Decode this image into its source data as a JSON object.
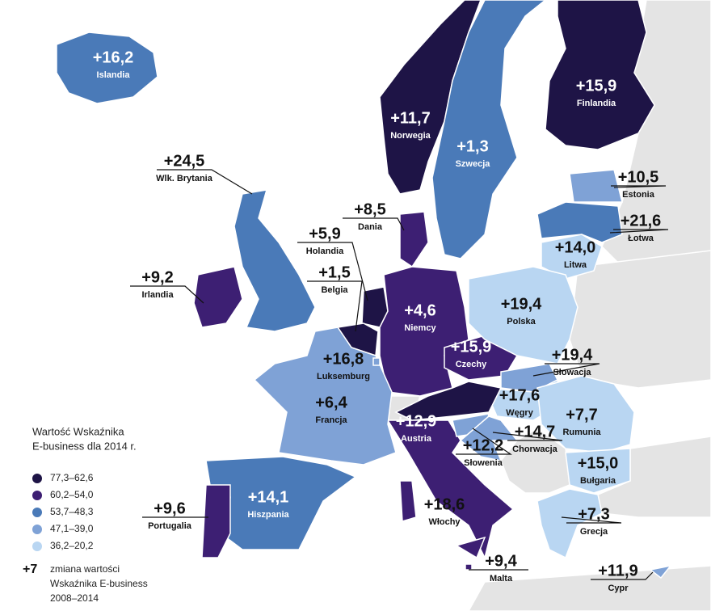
{
  "countries": [
    {
      "name": "Islandia",
      "change": "+16,2",
      "color": "#4a7ab8"
    },
    {
      "name": "Norwegia",
      "change": "+11,7",
      "color": "#1e1446"
    },
    {
      "name": "Szwecja",
      "change": "+1,3",
      "color": "#4a7ab8"
    },
    {
      "name": "Finlandia",
      "change": "+15,9",
      "color": "#1e1446"
    },
    {
      "name": "Wlk. Brytania",
      "change": "+24,5",
      "color": "#4a7ab8"
    },
    {
      "name": "Irlandia",
      "change": "+9,2",
      "color": "#3d1f73"
    },
    {
      "name": "Dania",
      "change": "+8,5",
      "color": "#3d1f73"
    },
    {
      "name": "Holandia",
      "change": "+5,9",
      "color": "#1e1446"
    },
    {
      "name": "Belgia",
      "change": "+1,5",
      "color": "#1e1446"
    },
    {
      "name": "Niemcy",
      "change": "+4,6",
      "color": "#3d1f73"
    },
    {
      "name": "Czechy",
      "change": "+15,9",
      "color": "#3d1f73"
    },
    {
      "name": "Estonia",
      "change": "+10,5",
      "color": "#7fa2d6"
    },
    {
      "name": "Łotwa",
      "change": "+21,6",
      "color": "#4a7ab8"
    },
    {
      "name": "Litwa",
      "change": "+14,0",
      "color": "#b9d6f2"
    },
    {
      "name": "Polska",
      "change": "+19,4",
      "color": "#b9d6f2"
    },
    {
      "name": "Słowacja",
      "change": "+19,4",
      "color": "#7fa2d6"
    },
    {
      "name": "Węgry",
      "change": "+17,6",
      "color": "#b9d6f2"
    },
    {
      "name": "Rumunia",
      "change": "+7,7",
      "color": "#b9d6f2"
    },
    {
      "name": "Bułgaria",
      "change": "+15,0",
      "color": "#b9d6f2"
    },
    {
      "name": "Grecja",
      "change": "+7,3",
      "color": "#b9d6f2"
    },
    {
      "name": "Cypr",
      "change": "+11,9",
      "color": "#7fa2d6"
    },
    {
      "name": "Malta",
      "change": "+9,4",
      "color": "#3d1f73"
    },
    {
      "name": "Włochy",
      "change": "+18,6",
      "color": "#3d1f73"
    },
    {
      "name": "Słowenia",
      "change": "+12,2",
      "color": "#7fa2d6"
    },
    {
      "name": "Chorwacja",
      "change": "+14,7",
      "color": "#7fa2d6"
    },
    {
      "name": "Austria",
      "change": "+12,9",
      "color": "#1e1446"
    },
    {
      "name": "Francja",
      "change": "+6,4",
      "color": "#7fa2d6"
    },
    {
      "name": "Luksemburg",
      "change": "+16,8",
      "color": "#7fa2d6"
    },
    {
      "name": "Hiszpania",
      "change": "+14,1",
      "color": "#4a7ab8"
    },
    {
      "name": "Portugalia",
      "change": "+9,6",
      "color": "#3d1f73"
    }
  ],
  "legend": {
    "title": [
      "Wartość Wskaźnika",
      "E-business dla 2014 r."
    ],
    "items": [
      {
        "label": "77,3–62,6",
        "color": "#1e1446"
      },
      {
        "label": "60,2–54,0",
        "color": "#3d1f73"
      },
      {
        "label": "53,7–48,3",
        "color": "#4a7ab8"
      },
      {
        "label": "47,1–39,0",
        "color": "#7fa2d6"
      },
      {
        "label": "36,2–20,2",
        "color": "#b9d6f2"
      }
    ]
  },
  "note": {
    "symbol": "+7",
    "text": [
      "zmiana wartości",
      "Wskaźnika E-business",
      "2008–2014"
    ]
  }
}
